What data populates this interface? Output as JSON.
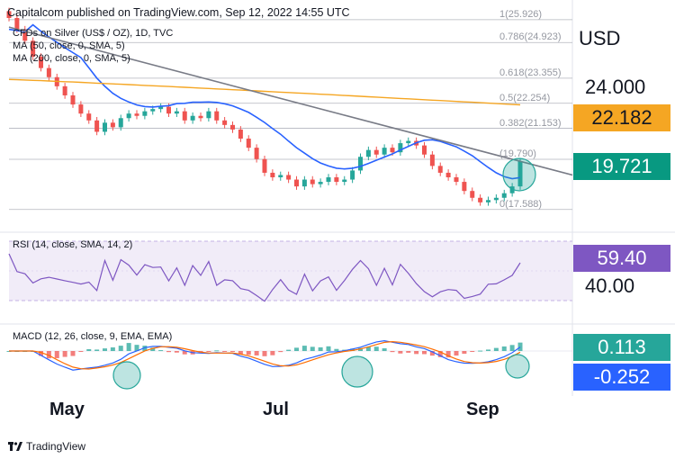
{
  "header": "Capitalcom published on TradingView.com, Sep 12, 2022 14:55 UTC",
  "legend": {
    "symbol": "CFDs on Silver (US$ / OZ), 1D, TVC",
    "ma50": "MA (50, close, 0, SMA, 5)",
    "ma200": "MA (200, close, 0, SMA, 5)",
    "rsi": "RSI (14, close, SMA, 14, 2)",
    "macd": "MACD (12, 26, close, 9, EMA, EMA)"
  },
  "price_axis": {
    "currency": "USD",
    "tick_24": "24.000",
    "last_close": "19.721",
    "ma200_value": "22.182",
    "rsi_value": "59.40",
    "rsi_level": "40.00",
    "macd_hist": "0.113",
    "macd_signal": "-0.252"
  },
  "fib_levels": [
    {
      "label": "1(25.926)",
      "value": 25.926
    },
    {
      "label": "0.786(24.923)",
      "value": 24.923
    },
    {
      "label": "0.618(23.355)",
      "value": 23.355
    },
    {
      "label": "0.5(22.254)",
      "value": 22.254
    },
    {
      "label": "0.382(21.153)",
      "value": 21.153
    },
    {
      "label": "(19.790)",
      "value": 19.79
    },
    {
      "label": "0(17.588)",
      "value": 17.588
    }
  ],
  "months": [
    "May",
    "Jul",
    "Sep"
  ],
  "branding": "TradingView",
  "colors": {
    "up": "#26a69a",
    "down": "#ef5350",
    "ma50": "#2962ff",
    "ma200": "#f5a623",
    "trendline": "#787b86",
    "rsi": "#7e57c2",
    "macd_badge": "#26a69a",
    "signal_badge": "#2962ff",
    "rsi_badge": "#7e57c2",
    "ma200_badge": "#f5a623",
    "price_badge": "#089981"
  },
  "chart_data": {
    "type": "candlestick",
    "title": "CFDs on Silver (US$ / OZ), 1D, TVC",
    "ylabel": "USD",
    "x_labels": [
      "May",
      "Jul",
      "Sep"
    ],
    "close_series": [
      26.0,
      25.5,
      25.0,
      24.3,
      23.8,
      23.4,
      23.0,
      22.6,
      22.2,
      21.8,
      21.5,
      21.0,
      21.4,
      21.2,
      21.6,
      21.8,
      21.7,
      21.9,
      22.0,
      22.1,
      21.8,
      21.9,
      21.5,
      21.7,
      21.6,
      21.9,
      21.5,
      21.3,
      21.1,
      20.7,
      20.3,
      19.8,
      19.2,
      19.0,
      19.1,
      18.9,
      18.6,
      18.9,
      18.7,
      18.8,
      19.0,
      18.8,
      18.9,
      19.3,
      19.9,
      20.2,
      20.0,
      20.3,
      20.1,
      20.5,
      20.6,
      20.4,
      20.0,
      19.5,
      19.2,
      19.0,
      18.8,
      18.4,
      18.1,
      17.9,
      18.0,
      18.1,
      18.3,
      18.6,
      19.7
    ],
    "ma50_end": 19.4,
    "ma200_end": 22.182,
    "last_close": 19.721,
    "rsi_last": 59.4,
    "rsi_level": 40.0,
    "macd_hist_last": 0.113,
    "macd_signal_last": -0.252
  }
}
